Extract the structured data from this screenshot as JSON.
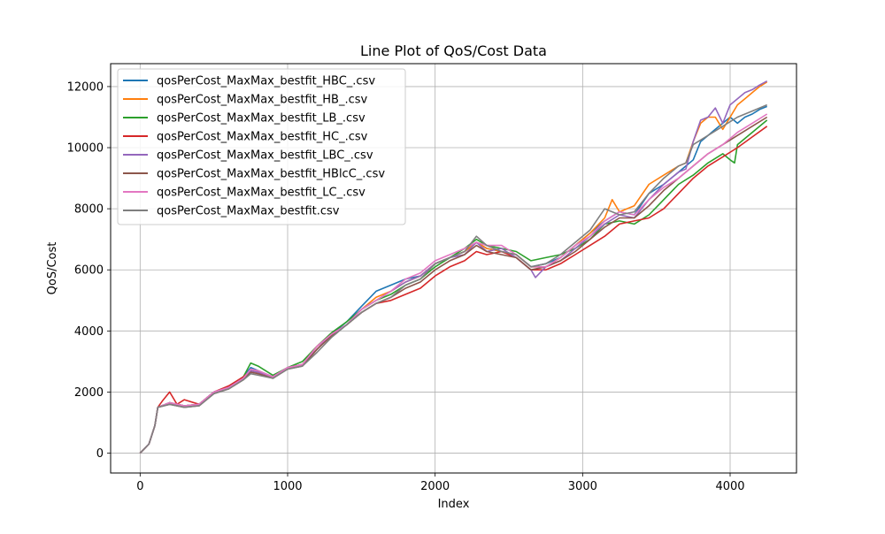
{
  "chart_data": {
    "type": "line",
    "title": "Line Plot of QoS/Cost Data",
    "xlabel": "Index",
    "ylabel": "QoS/Cost",
    "xlim": [
      -200,
      4450
    ],
    "ylim": [
      -650,
      12750
    ],
    "xticks": [
      0,
      1000,
      2000,
      3000,
      4000
    ],
    "yticks": [
      0,
      2000,
      4000,
      6000,
      8000,
      10000,
      12000
    ],
    "grid": true,
    "legend_position": "top-left",
    "series": [
      {
        "name": "qosPerCost_MaxMax_bestfit_HBC_.csv",
        "color": "#1f77b4",
        "x": [
          0,
          60,
          100,
          120,
          200,
          300,
          400,
          500,
          600,
          700,
          750,
          800,
          900,
          1000,
          1100,
          1200,
          1300,
          1400,
          1500,
          1600,
          1700,
          1800,
          1900,
          2000,
          2100,
          2200,
          2280,
          2350,
          2450,
          2550,
          2650,
          2750,
          2850,
          2950,
          3050,
          3150,
          3250,
          3350,
          3450,
          3550,
          3650,
          3700,
          3750,
          3800,
          3850,
          3900,
          3950,
          4000,
          4050,
          4100,
          4150,
          4200,
          4250
        ],
        "y": [
          0,
          300,
          900,
          1500,
          1650,
          1550,
          1600,
          2000,
          2150,
          2500,
          2800,
          2700,
          2500,
          2800,
          2900,
          3400,
          3900,
          4300,
          4800,
          5300,
          5500,
          5700,
          5800,
          6200,
          6400,
          6600,
          6900,
          6700,
          6600,
          6500,
          6100,
          6200,
          6400,
          6800,
          7200,
          7600,
          7900,
          7800,
          8500,
          8800,
          9200,
          9400,
          9600,
          10200,
          10400,
          10600,
          10800,
          11000,
          10800,
          11000,
          11100,
          11250,
          11350
        ]
      },
      {
        "name": "qosPerCost_MaxMax_bestfit_HB_.csv",
        "color": "#ff7f0e",
        "x": [
          0,
          60,
          100,
          120,
          200,
          300,
          400,
          500,
          600,
          700,
          750,
          800,
          900,
          1000,
          1100,
          1200,
          1300,
          1400,
          1500,
          1600,
          1700,
          1800,
          1900,
          2000,
          2100,
          2200,
          2280,
          2350,
          2450,
          2550,
          2650,
          2750,
          2850,
          2950,
          3050,
          3150,
          3200,
          3250,
          3350,
          3450,
          3550,
          3650,
          3700,
          3750,
          3800,
          3850,
          3900,
          3950,
          4000,
          4050,
          4100,
          4150,
          4200,
          4250
        ],
        "y": [
          0,
          300,
          900,
          1500,
          1650,
          1550,
          1600,
          2000,
          2150,
          2450,
          2700,
          2650,
          2500,
          2800,
          2900,
          3400,
          3900,
          4200,
          4700,
          5100,
          5300,
          5600,
          5800,
          6200,
          6400,
          6600,
          6900,
          6700,
          6600,
          6500,
          6100,
          6100,
          6400,
          6800,
          7200,
          7700,
          8300,
          7900,
          8100,
          8800,
          9100,
          9400,
          9500,
          10200,
          10800,
          11000,
          11000,
          10600,
          11000,
          11400,
          11600,
          11800,
          12000,
          12150
        ]
      },
      {
        "name": "qosPerCost_MaxMax_bestfit_LB_.csv",
        "color": "#2ca02c",
        "x": [
          0,
          60,
          100,
          120,
          200,
          300,
          400,
          500,
          600,
          700,
          750,
          800,
          900,
          1000,
          1100,
          1200,
          1300,
          1400,
          1500,
          1600,
          1700,
          1800,
          1900,
          2000,
          2100,
          2200,
          2280,
          2350,
          2450,
          2550,
          2650,
          2750,
          2850,
          2950,
          3050,
          3150,
          3250,
          3350,
          3450,
          3550,
          3650,
          3750,
          3850,
          3950,
          4000,
          4030,
          4050,
          4150,
          4250
        ],
        "y": [
          0,
          300,
          900,
          1500,
          1650,
          1550,
          1600,
          2000,
          2150,
          2500,
          2950,
          2850,
          2550,
          2800,
          3000,
          3500,
          3950,
          4300,
          4700,
          5000,
          5200,
          5500,
          5700,
          6100,
          6400,
          6700,
          7000,
          6800,
          6700,
          6600,
          6300,
          6400,
          6500,
          6700,
          7000,
          7500,
          7600,
          7500,
          7800,
          8300,
          8800,
          9100,
          9500,
          9800,
          9600,
          9500,
          10100,
          10500,
          10900
        ]
      },
      {
        "name": "qosPerCost_MaxMax_bestfit_HC_.csv",
        "color": "#d62728",
        "x": [
          0,
          60,
          100,
          120,
          150,
          200,
          250,
          300,
          400,
          500,
          600,
          700,
          750,
          800,
          900,
          1000,
          1100,
          1200,
          1300,
          1400,
          1500,
          1600,
          1700,
          1800,
          1900,
          2000,
          2100,
          2200,
          2280,
          2350,
          2450,
          2550,
          2650,
          2750,
          2850,
          2950,
          3050,
          3150,
          3250,
          3350,
          3450,
          3550,
          3650,
          3750,
          3850,
          3950,
          4050,
          4150,
          4250
        ],
        "y": [
          0,
          300,
          900,
          1500,
          1700,
          2000,
          1600,
          1750,
          1600,
          2000,
          2200,
          2500,
          2700,
          2650,
          2500,
          2800,
          2900,
          3500,
          3900,
          4200,
          4600,
          4900,
          5000,
          5200,
          5400,
          5800,
          6100,
          6300,
          6600,
          6500,
          6600,
          6400,
          6000,
          6000,
          6200,
          6500,
          6800,
          7100,
          7500,
          7600,
          7700,
          8000,
          8500,
          9000,
          9400,
          9700,
          10000,
          10350,
          10700
        ]
      },
      {
        "name": "qosPerCost_MaxMax_bestfit_LBC_.csv",
        "color": "#9467bd",
        "x": [
          0,
          60,
          100,
          120,
          200,
          300,
          400,
          500,
          600,
          700,
          750,
          800,
          900,
          1000,
          1100,
          1200,
          1300,
          1400,
          1500,
          1600,
          1700,
          1800,
          1900,
          2000,
          2100,
          2200,
          2280,
          2350,
          2450,
          2550,
          2650,
          2680,
          2750,
          2850,
          2950,
          3050,
          3150,
          3250,
          3350,
          3450,
          3550,
          3650,
          3700,
          3750,
          3800,
          3850,
          3900,
          3950,
          4000,
          4050,
          4100,
          4150,
          4200,
          4250
        ],
        "y": [
          0,
          300,
          900,
          1500,
          1650,
          1550,
          1600,
          2000,
          2150,
          2450,
          2700,
          2650,
          2500,
          2800,
          2900,
          3400,
          3900,
          4200,
          4700,
          5000,
          5300,
          5600,
          5800,
          6200,
          6400,
          6500,
          6900,
          6600,
          6700,
          6400,
          6000,
          5750,
          6100,
          6300,
          6700,
          7100,
          7500,
          7800,
          7700,
          8300,
          8800,
          9200,
          9300,
          10200,
          10900,
          11000,
          11300,
          10800,
          11400,
          11600,
          11800,
          11900,
          12050,
          12180
        ]
      },
      {
        "name": "qosPerCost_MaxMax_bestfit_HBlcC_.csv",
        "color": "#8c564b",
        "x": [
          0,
          60,
          100,
          120,
          200,
          300,
          400,
          500,
          600,
          700,
          750,
          800,
          900,
          1000,
          1100,
          1200,
          1300,
          1400,
          1500,
          1600,
          1700,
          1800,
          1900,
          2000,
          2100,
          2200,
          2280,
          2350,
          2450,
          2550,
          2650,
          2750,
          2850,
          2950,
          3050,
          3150,
          3250,
          3350,
          3450,
          3550,
          3650,
          3750,
          3850,
          3950,
          4050,
          4150,
          4250
        ],
        "y": [
          0,
          300,
          900,
          1500,
          1600,
          1500,
          1550,
          1950,
          2100,
          2400,
          2650,
          2600,
          2450,
          2750,
          2850,
          3400,
          3850,
          4200,
          4600,
          4900,
          5100,
          5400,
          5600,
          6000,
          6300,
          6500,
          6800,
          6600,
          6500,
          6400,
          6000,
          6100,
          6300,
          6600,
          7000,
          7400,
          7700,
          7700,
          8100,
          8600,
          9000,
          9400,
          9800,
          10100,
          10400,
          10700,
          11000
        ]
      },
      {
        "name": "qosPerCost_MaxMax_bestfit_LC_.csv",
        "color": "#e377c2",
        "x": [
          0,
          60,
          100,
          120,
          200,
          300,
          400,
          500,
          600,
          700,
          750,
          800,
          900,
          1000,
          1100,
          1200,
          1300,
          1400,
          1500,
          1600,
          1700,
          1800,
          1900,
          2000,
          2100,
          2200,
          2280,
          2350,
          2450,
          2550,
          2650,
          2750,
          2850,
          2950,
          3050,
          3150,
          3250,
          3350,
          3450,
          3550,
          3650,
          3750,
          3850,
          3950,
          4050,
          4150,
          4250
        ],
        "y": [
          0,
          300,
          900,
          1500,
          1650,
          1550,
          1600,
          2000,
          2150,
          2450,
          2750,
          2700,
          2500,
          2800,
          2900,
          3500,
          3900,
          4200,
          4700,
          5000,
          5300,
          5700,
          5900,
          6300,
          6500,
          6700,
          6900,
          6800,
          6800,
          6500,
          6100,
          6100,
          6400,
          6800,
          7100,
          7600,
          7900,
          7800,
          8300,
          8700,
          9000,
          9400,
          9800,
          10100,
          10500,
          10800,
          11100
        ]
      },
      {
        "name": "qosPerCost_MaxMax_bestfit.csv",
        "color": "#7f7f7f",
        "x": [
          0,
          60,
          100,
          120,
          200,
          300,
          400,
          500,
          600,
          700,
          750,
          800,
          900,
          1000,
          1100,
          1200,
          1300,
          1400,
          1500,
          1600,
          1700,
          1800,
          1900,
          2000,
          2100,
          2200,
          2280,
          2350,
          2450,
          2550,
          2650,
          2750,
          2850,
          2950,
          3050,
          3150,
          3250,
          3350,
          3450,
          3550,
          3650,
          3700,
          3750,
          3850,
          3950,
          4050,
          4150,
          4250
        ],
        "y": [
          0,
          300,
          900,
          1500,
          1600,
          1500,
          1550,
          1950,
          2100,
          2400,
          2600,
          2550,
          2450,
          2750,
          2850,
          3300,
          3800,
          4200,
          4600,
          4900,
          5100,
          5500,
          5700,
          6200,
          6400,
          6600,
          7100,
          6800,
          6600,
          6500,
          6100,
          6200,
          6500,
          6900,
          7300,
          8000,
          7800,
          7900,
          8500,
          9000,
          9400,
          9500,
          10100,
          10400,
          10700,
          11000,
          11200,
          11400
        ]
      }
    ]
  }
}
